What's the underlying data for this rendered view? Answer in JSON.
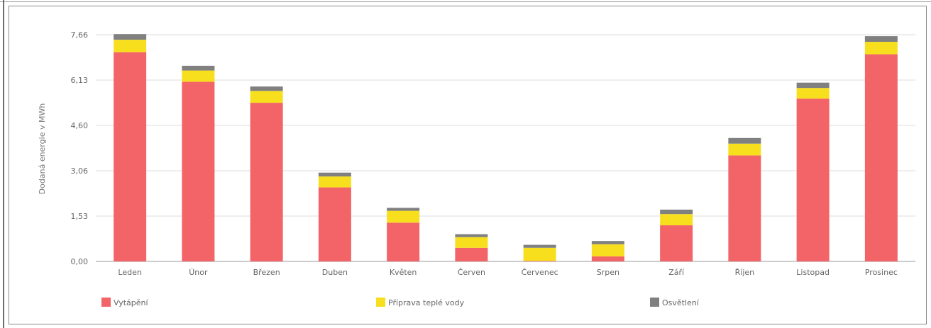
{
  "chart_data": {
    "type": "bar",
    "stacked": true,
    "categories": [
      "Leden",
      "Únor",
      "Březen",
      "Duben",
      "Květen",
      "Červen",
      "Červenec",
      "Srpen",
      "Září",
      "Říjen",
      "Listopad",
      "Prosinec"
    ],
    "series": [
      {
        "name": "Vytápění",
        "color": "#f26467",
        "values": [
          7.07,
          6.07,
          5.36,
          2.5,
          1.31,
          0.46,
          0.02,
          0.17,
          1.22,
          3.58,
          5.5,
          7.0
        ]
      },
      {
        "name": "Příprava teplé vody",
        "color": "#f7df1e",
        "values": [
          0.42,
          0.38,
          0.4,
          0.37,
          0.4,
          0.36,
          0.44,
          0.41,
          0.38,
          0.4,
          0.36,
          0.42
        ]
      },
      {
        "name": "Osvětlení",
        "color": "#808080",
        "values": [
          0.19,
          0.16,
          0.15,
          0.13,
          0.1,
          0.1,
          0.1,
          0.11,
          0.15,
          0.19,
          0.18,
          0.19
        ]
      }
    ],
    "yticks": [
      "0,00",
      "1,53",
      "3,06",
      "4,60",
      "6,13",
      "7,66"
    ],
    "ylim": [
      0,
      7.66
    ],
    "ylabel": "Dodaná energie v MWh",
    "xlabel": "",
    "title": "",
    "grid": true,
    "legend_position": "bottom"
  }
}
